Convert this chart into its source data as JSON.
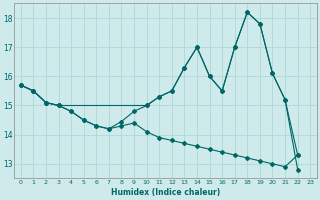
{
  "xlabel": "Humidex (Indice chaleur)",
  "bg_color": "#ceeaea",
  "line_color": "#006666",
  "grid_color": "#add8d8",
  "xlim": [
    -0.5,
    23.5
  ],
  "ylim": [
    12.5,
    18.5
  ],
  "xticks": [
    0,
    1,
    2,
    3,
    4,
    5,
    6,
    7,
    8,
    9,
    10,
    11,
    12,
    13,
    14,
    15,
    16,
    17,
    18,
    19,
    20,
    21,
    22,
    23
  ],
  "yticks": [
    13,
    14,
    15,
    16,
    17,
    18
  ],
  "series": [
    {
      "x": [
        0,
        1,
        2,
        3,
        4,
        5,
        6,
        7,
        8,
        9,
        10,
        11,
        12,
        13,
        14,
        15,
        16,
        17,
        18,
        19,
        20,
        21,
        22
      ],
      "y": [
        15.7,
        15.5,
        15.1,
        15.0,
        14.8,
        14.5,
        14.3,
        14.2,
        14.3,
        14.4,
        14.1,
        13.9,
        13.8,
        13.7,
        13.6,
        13.5,
        13.4,
        13.3,
        13.2,
        13.1,
        13.0,
        12.9,
        13.3
      ]
    },
    {
      "x": [
        0,
        1,
        2,
        3,
        10,
        11,
        12,
        13,
        14,
        15,
        16,
        17,
        18,
        19,
        20,
        21,
        22
      ],
      "y": [
        15.7,
        15.5,
        15.1,
        15.0,
        15.0,
        15.3,
        15.5,
        16.3,
        17.0,
        16.0,
        15.5,
        17.0,
        18.2,
        17.8,
        16.1,
        15.2,
        13.3
      ]
    },
    {
      "x": [
        0,
        1,
        2,
        3,
        4,
        5,
        6,
        7,
        8,
        9,
        10,
        11,
        12,
        13,
        14,
        15,
        16,
        17,
        18,
        19,
        20,
        21,
        22
      ],
      "y": [
        15.7,
        15.5,
        15.1,
        15.0,
        14.8,
        14.5,
        14.3,
        14.2,
        14.45,
        14.8,
        15.0,
        15.3,
        15.5,
        16.3,
        17.0,
        16.0,
        15.5,
        17.0,
        18.2,
        17.8,
        16.1,
        15.2,
        12.8
      ]
    }
  ]
}
